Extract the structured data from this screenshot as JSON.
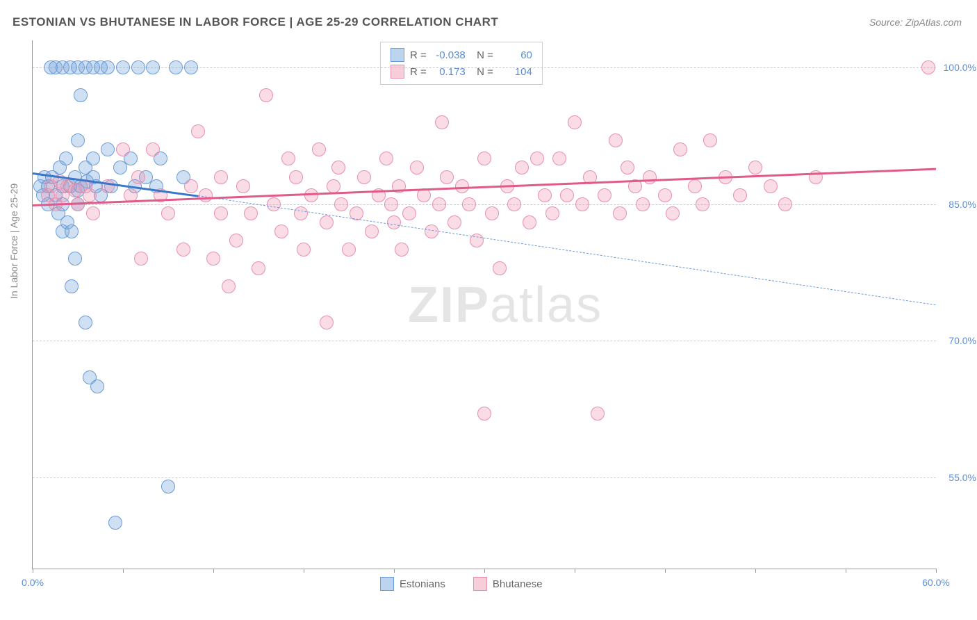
{
  "title": "ESTONIAN VS BHUTANESE IN LABOR FORCE | AGE 25-29 CORRELATION CHART",
  "source": "Source: ZipAtlas.com",
  "ylabel": "In Labor Force | Age 25-29",
  "watermark_bold": "ZIP",
  "watermark_rest": "atlas",
  "chart": {
    "type": "scatter",
    "xlim": [
      0,
      60
    ],
    "ylim": [
      45,
      103
    ],
    "background_color": "#ffffff",
    "grid_color": "#cccccc",
    "yticks": [
      55.0,
      70.0,
      85.0,
      100.0
    ],
    "ytick_labels": [
      "55.0%",
      "70.0%",
      "85.0%",
      "100.0%"
    ],
    "xticks": [
      0,
      6,
      12,
      18,
      24,
      30,
      36,
      42,
      48,
      54,
      60
    ],
    "xtick_labels_shown": {
      "0": "0.0%",
      "60": "60.0%"
    },
    "marker_radius": 9,
    "marker_stroke_width": 1.5,
    "series": {
      "estonians": {
        "label": "Estonians",
        "color_fill": "rgba(120,165,220,0.35)",
        "color_stroke": "#6a9bd8",
        "swatch_fill": "#bcd4ee",
        "swatch_stroke": "#6a9bd8",
        "R": "-0.038",
        "N": "60",
        "trend_solid": {
          "x1": 0,
          "y1": 88.5,
          "x2": 11,
          "y2": 86,
          "color": "#3a77c9",
          "width": 3
        },
        "trend_dashed": {
          "x1": 11,
          "y1": 86,
          "x2": 60,
          "y2": 74,
          "color": "#6a9bd8",
          "width": 1.5,
          "dash": true
        },
        "points": [
          [
            0.5,
            87
          ],
          [
            0.7,
            86
          ],
          [
            0.8,
            88
          ],
          [
            1.0,
            85
          ],
          [
            1.0,
            87
          ],
          [
            1.2,
            100
          ],
          [
            1.3,
            88
          ],
          [
            1.5,
            86
          ],
          [
            1.5,
            100
          ],
          [
            1.7,
            84
          ],
          [
            1.8,
            89
          ],
          [
            2.0,
            100
          ],
          [
            2.0,
            87
          ],
          [
            2.0,
            85
          ],
          [
            2.0,
            82
          ],
          [
            2.2,
            90
          ],
          [
            2.3,
            83
          ],
          [
            2.5,
            87
          ],
          [
            2.5,
            100
          ],
          [
            2.6,
            82
          ],
          [
            2.6,
            76
          ],
          [
            2.8,
            88
          ],
          [
            2.8,
            79
          ],
          [
            3.0,
            92
          ],
          [
            3.0,
            100
          ],
          [
            3.0,
            85
          ],
          [
            3.0,
            86.5
          ],
          [
            3.2,
            97
          ],
          [
            3.2,
            87
          ],
          [
            3.5,
            100
          ],
          [
            3.5,
            89
          ],
          [
            3.5,
            72
          ],
          [
            3.6,
            87.5
          ],
          [
            3.8,
            66
          ],
          [
            4.0,
            100
          ],
          [
            4.0,
            88
          ],
          [
            4.0,
            90
          ],
          [
            4.2,
            87
          ],
          [
            4.3,
            65
          ],
          [
            4.5,
            100
          ],
          [
            4.5,
            86
          ],
          [
            5.0,
            91
          ],
          [
            5.0,
            100
          ],
          [
            5.2,
            87
          ],
          [
            5.5,
            50
          ],
          [
            5.8,
            89
          ],
          [
            6.0,
            100
          ],
          [
            6.5,
            90
          ],
          [
            6.8,
            87
          ],
          [
            7.0,
            100
          ],
          [
            7.5,
            88
          ],
          [
            8.0,
            100
          ],
          [
            8.2,
            87
          ],
          [
            8.5,
            90
          ],
          [
            9.0,
            54
          ],
          [
            9.5,
            100
          ],
          [
            10.0,
            88
          ],
          [
            10.5,
            100
          ]
        ]
      },
      "bhutanese": {
        "label": "Bhutanese",
        "color_fill": "rgba(235,140,170,0.30)",
        "color_stroke": "#e88fae",
        "swatch_fill": "#f7cdd9",
        "swatch_stroke": "#e88fae",
        "R": "0.173",
        "N": "104",
        "trend_solid": {
          "x1": 0,
          "y1": 85,
          "x2": 60,
          "y2": 89,
          "color": "#e05a8a",
          "width": 3
        },
        "points": [
          [
            1.0,
            86
          ],
          [
            1.2,
            87
          ],
          [
            1.5,
            85
          ],
          [
            1.8,
            87.5
          ],
          [
            2.0,
            86
          ],
          [
            2.3,
            87
          ],
          [
            2.8,
            86.5
          ],
          [
            3.0,
            85
          ],
          [
            3.5,
            87
          ],
          [
            3.8,
            86
          ],
          [
            4.0,
            84
          ],
          [
            5.0,
            87
          ],
          [
            6.0,
            91
          ],
          [
            6.5,
            86
          ],
          [
            7.0,
            88
          ],
          [
            7.2,
            79
          ],
          [
            8.0,
            91
          ],
          [
            8.5,
            86
          ],
          [
            9.0,
            84
          ],
          [
            10.0,
            80
          ],
          [
            10.5,
            87
          ],
          [
            11.0,
            93
          ],
          [
            11.5,
            86
          ],
          [
            12.0,
            79
          ],
          [
            12.5,
            84
          ],
          [
            12.5,
            88
          ],
          [
            13.0,
            76
          ],
          [
            13.5,
            81
          ],
          [
            14.0,
            87
          ],
          [
            14.5,
            84
          ],
          [
            15.0,
            78
          ],
          [
            15.5,
            97
          ],
          [
            16.0,
            85
          ],
          [
            16.5,
            82
          ],
          [
            17.0,
            90
          ],
          [
            17.5,
            88
          ],
          [
            17.8,
            84
          ],
          [
            18.0,
            80
          ],
          [
            18.5,
            86
          ],
          [
            19.0,
            91
          ],
          [
            19.5,
            83
          ],
          [
            19.5,
            72
          ],
          [
            20.0,
            87
          ],
          [
            20.3,
            89
          ],
          [
            20.5,
            85
          ],
          [
            21.0,
            80
          ],
          [
            21.5,
            84
          ],
          [
            22.0,
            88
          ],
          [
            22.5,
            82
          ],
          [
            23.0,
            86
          ],
          [
            23.5,
            90
          ],
          [
            23.8,
            85
          ],
          [
            24.0,
            83
          ],
          [
            24.3,
            87
          ],
          [
            24.5,
            80
          ],
          [
            25.0,
            84
          ],
          [
            25.5,
            89
          ],
          [
            26.0,
            86
          ],
          [
            26.5,
            82
          ],
          [
            27.0,
            85
          ],
          [
            27.2,
            94
          ],
          [
            27.5,
            88
          ],
          [
            28.0,
            83
          ],
          [
            28.5,
            87
          ],
          [
            29.0,
            85
          ],
          [
            29.5,
            81
          ],
          [
            30.0,
            90
          ],
          [
            30.0,
            62
          ],
          [
            30.5,
            84
          ],
          [
            31.0,
            78
          ],
          [
            31.5,
            87
          ],
          [
            32.0,
            85
          ],
          [
            32.5,
            89
          ],
          [
            33.0,
            83
          ],
          [
            33.5,
            90
          ],
          [
            34.0,
            86
          ],
          [
            34.5,
            84
          ],
          [
            35.0,
            90
          ],
          [
            35.5,
            86
          ],
          [
            36.0,
            94
          ],
          [
            36.5,
            85
          ],
          [
            37.0,
            88
          ],
          [
            37.5,
            62
          ],
          [
            38.0,
            86
          ],
          [
            38.7,
            92
          ],
          [
            39.0,
            84
          ],
          [
            39.5,
            89
          ],
          [
            40.0,
            87
          ],
          [
            40.5,
            85
          ],
          [
            41.0,
            88
          ],
          [
            42.0,
            86
          ],
          [
            42.5,
            84
          ],
          [
            43.0,
            91
          ],
          [
            44.0,
            87
          ],
          [
            44.5,
            85
          ],
          [
            45.0,
            92
          ],
          [
            46.0,
            88
          ],
          [
            47.0,
            86
          ],
          [
            48.0,
            89
          ],
          [
            49.0,
            87
          ],
          [
            50.0,
            85
          ],
          [
            52.0,
            88
          ],
          [
            59.5,
            100
          ]
        ]
      }
    }
  },
  "bottom_legend": [
    {
      "label": "Estonians",
      "fill": "#bcd4ee",
      "stroke": "#6a9bd8"
    },
    {
      "label": "Bhutanese",
      "fill": "#f7cdd9",
      "stroke": "#e88fae"
    }
  ]
}
